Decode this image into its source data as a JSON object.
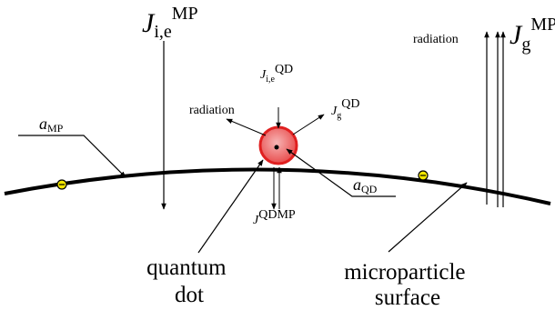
{
  "labels": {
    "j_ie_mp": {
      "base": "J",
      "sub": "i,e",
      "sup": "MP"
    },
    "j_g_mp": {
      "base": "J",
      "sub": "g",
      "sup": "MP"
    },
    "j_ie_qd": {
      "base": "J",
      "sub": "i,e",
      "sup": "QD"
    },
    "j_g_qd": {
      "base": "J",
      "sub": "g",
      "sup": "QD"
    },
    "j_qdmp": {
      "base": "J",
      "sup": "QDMP"
    },
    "a_mp": {
      "base": "a",
      "sub": "MP"
    },
    "a_qd": {
      "base": "a",
      "sub": "QD"
    },
    "radiation_left": "radiation",
    "radiation_right": "radiation",
    "quantum_dot": [
      "quantum",
      "dot"
    ],
    "microparticle_surface": [
      "microparticle",
      "surface"
    ]
  },
  "colors": {
    "qd_fill_center": "#f7b4b4",
    "qd_fill_edge": "#e84a4a",
    "qd_ring": "#e02020",
    "electron_fill": "#f2e600",
    "line": "#000000"
  }
}
